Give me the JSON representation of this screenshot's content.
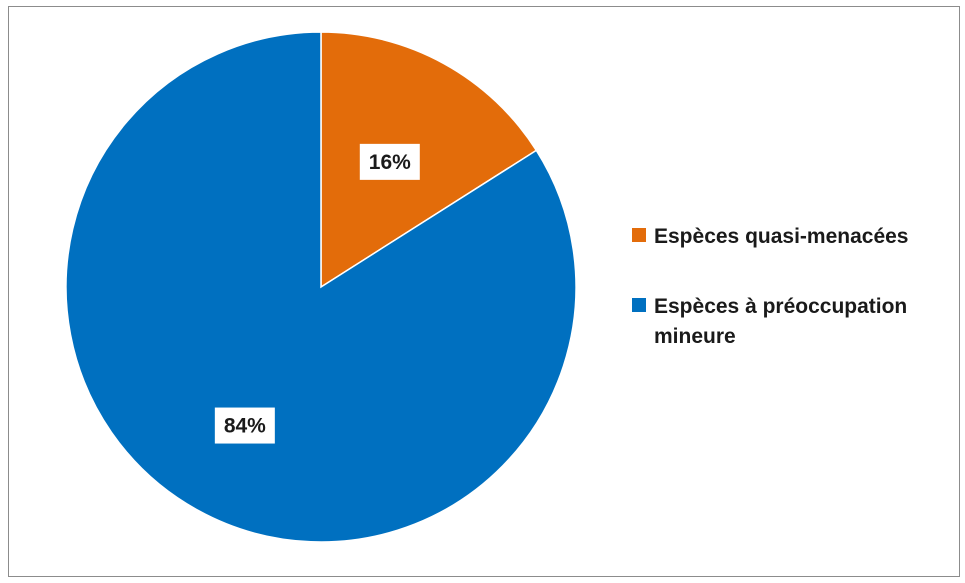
{
  "chart_data": {
    "type": "pie",
    "categories": [
      "Espèces quasi-menacées",
      "Espèces à préoccupation mineure"
    ],
    "values": [
      16,
      84
    ],
    "data_labels": [
      "16%",
      "84%"
    ],
    "colors": [
      "#E36C0A",
      "#0070C0"
    ],
    "title": "",
    "start_angle_deg": 0,
    "direction": "clockwise",
    "legend_position": "right",
    "legend": [
      {
        "label": "Espèces quasi-menacées",
        "color": "#E36C0A"
      },
      {
        "label": "Espèces à préoccupation mineure",
        "color": "#0070C0"
      }
    ]
  }
}
